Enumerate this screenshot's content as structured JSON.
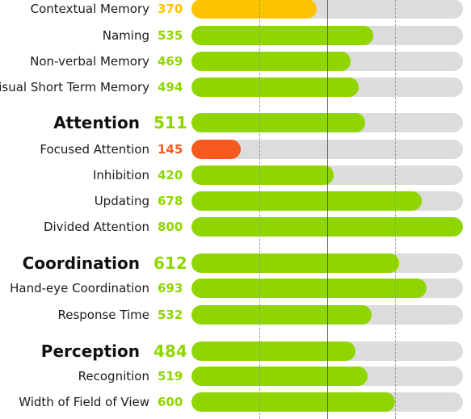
{
  "colors": {
    "good": "#8fd600",
    "average": "#ffc200",
    "low": "#f55a1e",
    "track": "#dcdcdc"
  },
  "scale": {
    "min": 0,
    "max": 800,
    "reference_lines": [
      200,
      400,
      600
    ]
  },
  "rows": [
    {
      "label": "Contextual Memory",
      "score": "370",
      "value": 370,
      "level": "average",
      "heading": false
    },
    {
      "label": "Naming",
      "score": "535",
      "value": 535,
      "level": "good",
      "heading": false
    },
    {
      "label": "Non-verbal Memory",
      "score": "469",
      "value": 469,
      "level": "good",
      "heading": false
    },
    {
      "label": "isual Short Term Memory",
      "score": "494",
      "value": 494,
      "level": "good",
      "heading": false
    },
    {
      "label": "Attention",
      "score": "511",
      "value": 511,
      "level": "good",
      "heading": true
    },
    {
      "label": "Focused Attention",
      "score": "145",
      "value": 145,
      "level": "low",
      "heading": false
    },
    {
      "label": "Inhibition",
      "score": "420",
      "value": 420,
      "level": "good",
      "heading": false
    },
    {
      "label": "Updating",
      "score": "678",
      "value": 678,
      "level": "good",
      "heading": false
    },
    {
      "label": "Divided Attention",
      "score": "800",
      "value": 800,
      "level": "good",
      "heading": false
    },
    {
      "label": "Coordination",
      "score": "612",
      "value": 612,
      "level": "good",
      "heading": true
    },
    {
      "label": "Hand-eye Coordination",
      "score": "693",
      "value": 693,
      "level": "good",
      "heading": false
    },
    {
      "label": "Response Time",
      "score": "532",
      "value": 532,
      "level": "good",
      "heading": false
    },
    {
      "label": "Perception",
      "score": "484",
      "value": 484,
      "level": "good",
      "heading": true
    },
    {
      "label": "Recognition",
      "score": "519",
      "value": 519,
      "level": "good",
      "heading": false
    },
    {
      "label": "Width of Field of View",
      "score": "600",
      "value": 600,
      "level": "good",
      "heading": false
    }
  ]
}
